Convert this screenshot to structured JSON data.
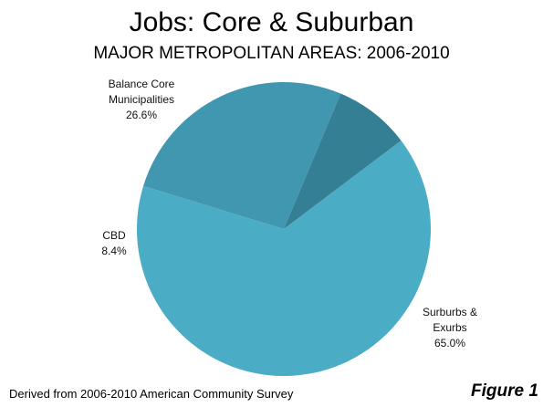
{
  "chart_data": {
    "type": "pie",
    "title": "Jobs: Core & Suburban",
    "subtitle": "MAJOR METROPOLITAN AREAS: 2006-2010",
    "categories": [
      "Balance Core Municipalities",
      "CBD",
      "Surburbs & Exurbs"
    ],
    "values": [
      26.6,
      8.4,
      65.0
    ],
    "value_labels": [
      "26.6%",
      "8.4%",
      "65.0%"
    ],
    "colors": [
      "#4297b0",
      "#357f94",
      "#4bacc6"
    ],
    "source": "Derived from 2006-2010  American Community Survey",
    "figure_label": "Figure 1"
  }
}
